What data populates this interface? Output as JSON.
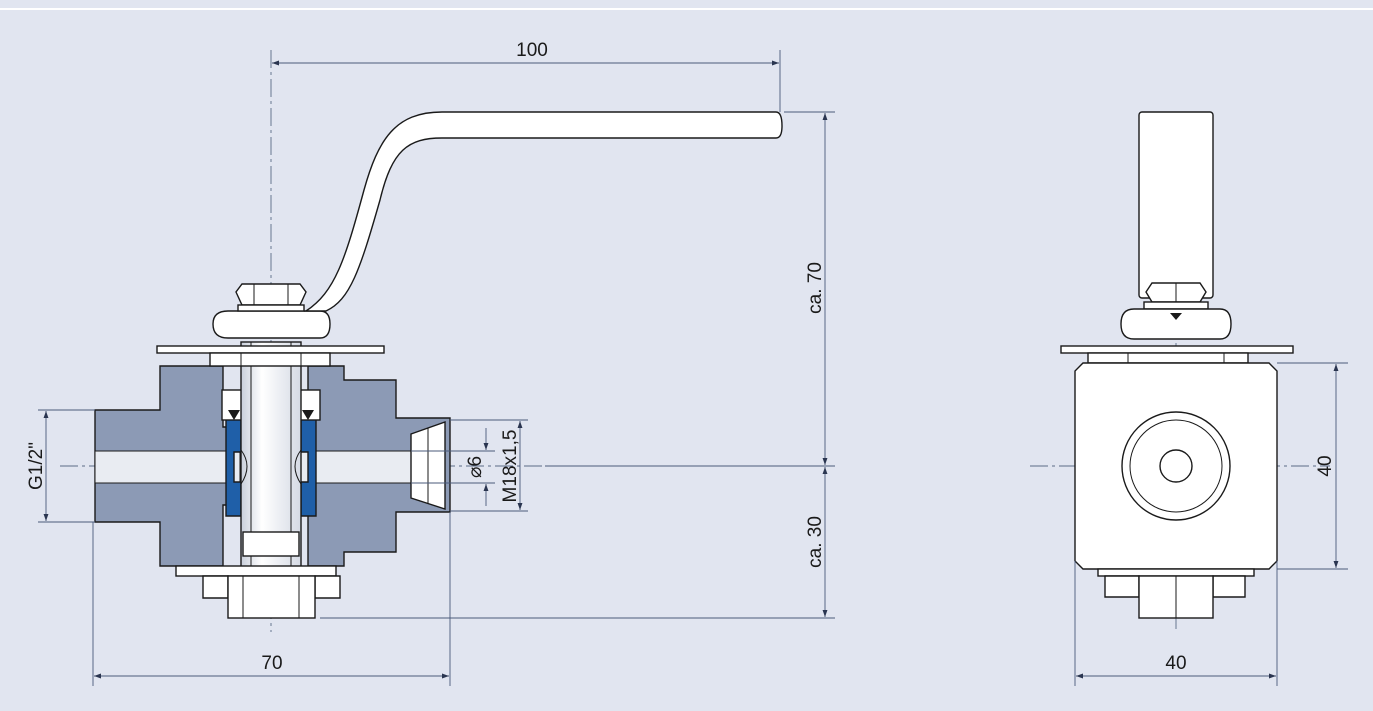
{
  "drawing": {
    "background_color": "#e1e5f0",
    "body_section_color": "#8c9ab5",
    "seal_color": "#1f5fa8",
    "dimensions": {
      "handle_length": "100",
      "height_above_axis": "ca. 70",
      "height_below_axis": "ca. 30",
      "body_width": "70",
      "thread_left": "G1/2\"",
      "bore_diameter": "⌀6",
      "thread_right": "M18x1,5",
      "side_height": "40",
      "side_width": "40"
    }
  }
}
